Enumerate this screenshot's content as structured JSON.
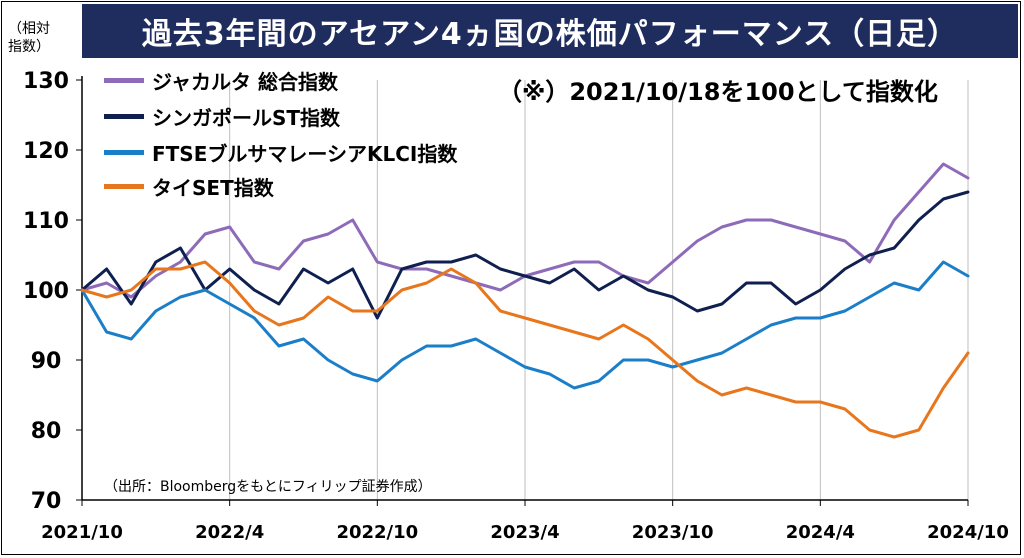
{
  "title": "過去3年間のアセアン4ヵ国の株価パフォーマンス（日足）",
  "ylabel": "（相対\n指数）",
  "note": "（※）2021/10/18を100として指数化",
  "source": "（出所：Bloombergをもとにフィリップ証券作成）",
  "chart_data": {
    "type": "line",
    "ylim": [
      70,
      130
    ],
    "yticks": [
      "70",
      "80",
      "90",
      "100",
      "110",
      "120",
      "130"
    ],
    "xticks": [
      "2021/10",
      "2022/4",
      "2022/10",
      "2023/4",
      "2023/10",
      "2024/4",
      "2024/10"
    ],
    "xlim": [
      0,
      36
    ],
    "grid": "vertical",
    "legend": "top-left",
    "series": [
      {
        "name": "ジャカルタ 総合指数",
        "color": "#8e6bb8",
        "points": [
          [
            0,
            100
          ],
          [
            1,
            101
          ],
          [
            2,
            99
          ],
          [
            3,
            102
          ],
          [
            4,
            104
          ],
          [
            5,
            108
          ],
          [
            6,
            109
          ],
          [
            7,
            104
          ],
          [
            8,
            103
          ],
          [
            9,
            107
          ],
          [
            10,
            108
          ],
          [
            11,
            110
          ],
          [
            12,
            104
          ],
          [
            13,
            103
          ],
          [
            14,
            103
          ],
          [
            15,
            102
          ],
          [
            16,
            101
          ],
          [
            17,
            100
          ],
          [
            18,
            102
          ],
          [
            19,
            103
          ],
          [
            20,
            104
          ],
          [
            21,
            104
          ],
          [
            22,
            102
          ],
          [
            23,
            101
          ],
          [
            24,
            104
          ],
          [
            25,
            107
          ],
          [
            26,
            109
          ],
          [
            27,
            110
          ],
          [
            28,
            110
          ],
          [
            29,
            109
          ],
          [
            30,
            108
          ],
          [
            31,
            107
          ],
          [
            32,
            104
          ],
          [
            33,
            110
          ],
          [
            34,
            114
          ],
          [
            35,
            118
          ],
          [
            36,
            116
          ]
        ]
      },
      {
        "name": "シンガポールST指数",
        "color": "#0f1f4f",
        "points": [
          [
            0,
            100
          ],
          [
            1,
            103
          ],
          [
            2,
            98
          ],
          [
            3,
            104
          ],
          [
            4,
            106
          ],
          [
            5,
            100
          ],
          [
            6,
            103
          ],
          [
            7,
            100
          ],
          [
            8,
            98
          ],
          [
            9,
            103
          ],
          [
            10,
            101
          ],
          [
            11,
            103
          ],
          [
            12,
            96
          ],
          [
            13,
            103
          ],
          [
            14,
            104
          ],
          [
            15,
            104
          ],
          [
            16,
            105
          ],
          [
            17,
            103
          ],
          [
            18,
            102
          ],
          [
            19,
            101
          ],
          [
            20,
            103
          ],
          [
            21,
            100
          ],
          [
            22,
            102
          ],
          [
            23,
            100
          ],
          [
            24,
            99
          ],
          [
            25,
            97
          ],
          [
            26,
            98
          ],
          [
            27,
            101
          ],
          [
            28,
            101
          ],
          [
            29,
            98
          ],
          [
            30,
            100
          ],
          [
            31,
            103
          ],
          [
            32,
            105
          ],
          [
            33,
            106
          ],
          [
            34,
            110
          ],
          [
            35,
            113
          ],
          [
            36,
            114
          ]
        ]
      },
      {
        "name": "FTSEブルサマレーシアKLCI指数",
        "color": "#1b7ec8",
        "points": [
          [
            0,
            100
          ],
          [
            1,
            94
          ],
          [
            2,
            93
          ],
          [
            3,
            97
          ],
          [
            4,
            99
          ],
          [
            5,
            100
          ],
          [
            6,
            98
          ],
          [
            7,
            96
          ],
          [
            8,
            92
          ],
          [
            9,
            93
          ],
          [
            10,
            90
          ],
          [
            11,
            88
          ],
          [
            12,
            87
          ],
          [
            13,
            90
          ],
          [
            14,
            92
          ],
          [
            15,
            92
          ],
          [
            16,
            93
          ],
          [
            17,
            91
          ],
          [
            18,
            89
          ],
          [
            19,
            88
          ],
          [
            20,
            86
          ],
          [
            21,
            87
          ],
          [
            22,
            90
          ],
          [
            23,
            90
          ],
          [
            24,
            89
          ],
          [
            25,
            90
          ],
          [
            26,
            91
          ],
          [
            27,
            93
          ],
          [
            28,
            95
          ],
          [
            29,
            96
          ],
          [
            30,
            96
          ],
          [
            31,
            97
          ],
          [
            32,
            99
          ],
          [
            33,
            101
          ],
          [
            34,
            100
          ],
          [
            35,
            104
          ],
          [
            36,
            102
          ]
        ]
      },
      {
        "name": "タイSET指数",
        "color": "#e8761c",
        "points": [
          [
            0,
            100
          ],
          [
            1,
            99
          ],
          [
            2,
            100
          ],
          [
            3,
            103
          ],
          [
            4,
            103
          ],
          [
            5,
            104
          ],
          [
            6,
            101
          ],
          [
            7,
            97
          ],
          [
            8,
            95
          ],
          [
            9,
            96
          ],
          [
            10,
            99
          ],
          [
            11,
            97
          ],
          [
            12,
            97
          ],
          [
            13,
            100
          ],
          [
            14,
            101
          ],
          [
            15,
            103
          ],
          [
            16,
            101
          ],
          [
            17,
            97
          ],
          [
            18,
            96
          ],
          [
            19,
            95
          ],
          [
            20,
            94
          ],
          [
            21,
            93
          ],
          [
            22,
            95
          ],
          [
            23,
            93
          ],
          [
            24,
            90
          ],
          [
            25,
            87
          ],
          [
            26,
            85
          ],
          [
            27,
            86
          ],
          [
            28,
            85
          ],
          [
            29,
            84
          ],
          [
            30,
            84
          ],
          [
            31,
            83
          ],
          [
            32,
            80
          ],
          [
            33,
            79
          ],
          [
            34,
            80
          ],
          [
            35,
            86
          ],
          [
            36,
            91
          ]
        ]
      }
    ]
  }
}
